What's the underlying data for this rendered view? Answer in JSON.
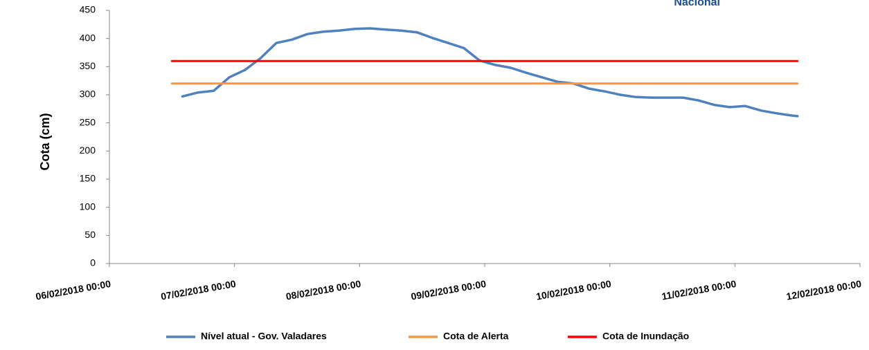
{
  "chart_data": {
    "type": "line",
    "logo_text": "Nacional",
    "y_label": "Cota (cm)",
    "xlim": [
      "06/02/2018 00:00",
      "12/02/2018 00:00"
    ],
    "xticks": [
      "06/02/2018 00:00",
      "07/02/2018 00:00",
      "08/02/2018 00:00",
      "09/02/2018 00:00",
      "10/02/2018 00:00",
      "11/02/2018 00:00",
      "12/02/2018 00:00"
    ],
    "ylim": [
      0,
      450
    ],
    "yticks": [
      0,
      50,
      100,
      150,
      200,
      250,
      300,
      350,
      400,
      450
    ],
    "grid": false,
    "legend": "bottom",
    "series": [
      {
        "name": "Nível atual - Gov. Valadares",
        "color": "#4f81bd",
        "x": [
          "06/02/2018 14:00",
          "06/02/2018 17:00",
          "06/02/2018 20:00",
          "06/02/2018 23:00",
          "07/02/2018 02:00",
          "07/02/2018 05:00",
          "07/02/2018 08:00",
          "07/02/2018 11:00",
          "07/02/2018 14:00",
          "07/02/2018 17:00",
          "07/02/2018 20:00",
          "07/02/2018 23:00",
          "08/02/2018 02:00",
          "08/02/2018 05:00",
          "08/02/2018 08:00",
          "08/02/2018 11:00",
          "08/02/2018 14:00",
          "08/02/2018 17:00",
          "08/02/2018 20:00",
          "08/02/2018 23:00",
          "09/02/2018 02:00",
          "09/02/2018 05:00",
          "09/02/2018 08:00",
          "09/02/2018 11:00",
          "09/02/2018 14:00",
          "09/02/2018 17:00",
          "09/02/2018 20:00",
          "09/02/2018 23:00",
          "10/02/2018 02:00",
          "10/02/2018 05:00",
          "10/02/2018 08:00",
          "10/02/2018 11:00",
          "10/02/2018 14:00",
          "10/02/2018 17:00",
          "10/02/2018 20:00",
          "10/02/2018 23:00",
          "11/02/2018 02:00",
          "11/02/2018 05:00",
          "11/02/2018 08:00",
          "11/02/2018 11:00",
          "11/02/2018 12:00"
        ],
        "values": [
          297,
          304,
          307,
          331,
          344,
          365,
          392,
          398,
          408,
          412,
          414,
          417,
          418,
          416,
          414,
          411,
          401,
          392,
          383,
          361,
          353,
          348,
          339,
          331,
          323,
          320,
          311,
          306,
          300,
          296,
          295,
          295,
          295,
          290,
          282,
          278,
          280,
          272,
          267,
          263,
          262
        ]
      },
      {
        "name": "Cota de Alerta",
        "color": "#f79646",
        "x": [
          "06/02/2018 12:00",
          "11/02/2018 12:00"
        ],
        "values": [
          320,
          320
        ]
      },
      {
        "name": "Cota de Inundação",
        "color": "#ff0000",
        "x": [
          "06/02/2018 12:00",
          "11/02/2018 12:00"
        ],
        "values": [
          360,
          360
        ]
      }
    ]
  }
}
